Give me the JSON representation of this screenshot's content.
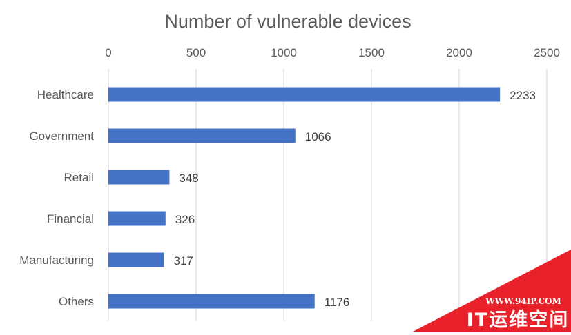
{
  "chart_data": {
    "type": "bar",
    "orientation": "horizontal",
    "title": "Number of vulnerable devices",
    "categories": [
      "Healthcare",
      "Government",
      "Retail",
      "Financial",
      "Manufacturing",
      "Others"
    ],
    "values": [
      2233,
      1066,
      348,
      326,
      317,
      1176
    ],
    "data_labels": [
      "2233",
      "1066",
      "348",
      "326",
      "317",
      "1176"
    ],
    "xlim": [
      0,
      2500
    ],
    "x_ticks": [
      0,
      500,
      1000,
      1500,
      2000,
      2500
    ],
    "x_tick_labels": [
      "0",
      "500",
      "1000",
      "1500",
      "2000",
      "2500"
    ],
    "x_axis_position": "top",
    "grid": true,
    "legend": "none",
    "bar_color": "#4472C4",
    "grid_color": "#D9D9D9"
  },
  "watermark": {
    "url_text": "WWW.94IP.COM",
    "brand_text": "IT运维空间",
    "color": "#E8212B"
  }
}
